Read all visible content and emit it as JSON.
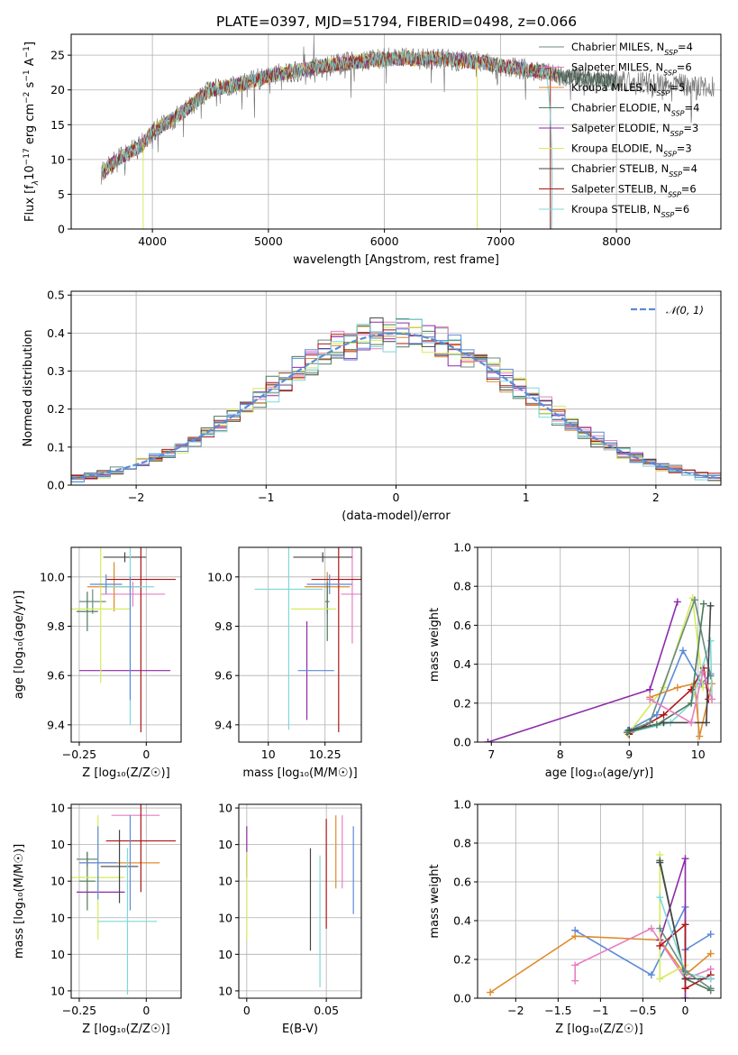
{
  "title": "PLATE=0397, MJD=51794, FIBERID=0498, z=0.066",
  "colors": {
    "Chabrier MILES": "#6a8a82",
    "Salpeter MILES": "#e77fc1",
    "Kroupa MILES": "#e08a2a",
    "Chabrier ELODIE": "#4d7a5a",
    "Salpeter ELODIE": "#8e2aa8",
    "Kroupa ELODIE": "#d6eb5a",
    "Chabrier STELIB": "#444444",
    "Salpeter STELIB": "#b01515",
    "Kroupa STELIB": "#7fd8d8",
    "normal": "#5b8bd8",
    "models_blue": "#5b8bd8"
  },
  "chart_data": [
    {
      "type": "line",
      "name": "spectrum",
      "xlabel": "wavelength [Angstrom, rest frame]",
      "ylabel_parts": [
        "Flux [f",
        "λ",
        "10",
        "−17",
        " erg cm",
        "−2",
        " s",
        "−1",
        " A",
        "−1",
        "]"
      ],
      "xlim": [
        3300,
        8900
      ],
      "ylim": [
        0,
        28
      ],
      "xticks": [
        4000,
        5000,
        6000,
        7000,
        8000
      ],
      "yticks": [
        0,
        5,
        10,
        15,
        20,
        25
      ],
      "continuum": [
        [
          3560,
          8
        ],
        [
          3700,
          10
        ],
        [
          3900,
          12
        ],
        [
          4000,
          14
        ],
        [
          4200,
          16
        ],
        [
          4500,
          20
        ],
        [
          4800,
          21
        ],
        [
          5000,
          22
        ],
        [
          5500,
          23.5
        ],
        [
          6000,
          24.5
        ],
        [
          6500,
          24.5
        ],
        [
          6800,
          24
        ],
        [
          7000,
          23.5
        ],
        [
          7200,
          23
        ],
        [
          7400,
          22.5
        ],
        [
          7500,
          22
        ],
        [
          7800,
          21.5
        ],
        [
          8300,
          21
        ],
        [
          8800,
          20.5
        ]
      ],
      "legend": [
        {
          "label": "Chabrier MILES",
          "nssp": "4"
        },
        {
          "label": "Salpeter MILES",
          "nssp": "6"
        },
        {
          "label": "Kroupa MILES",
          "nssp": "5"
        },
        {
          "label": "Chabrier ELODIE",
          "nssp": "4"
        },
        {
          "label": "Salpeter ELODIE",
          "nssp": "3"
        },
        {
          "label": "Kroupa ELODIE",
          "nssp": "3"
        },
        {
          "label": "Chabrier STELIB",
          "nssp": "4"
        },
        {
          "label": "Salpeter STELIB",
          "nssp": "6"
        },
        {
          "label": "Kroupa STELIB",
          "nssp": "6"
        }
      ],
      "nssp_prefix": "N",
      "nssp_sub": "SSP",
      "legend_position": "right"
    },
    {
      "type": "histogram",
      "name": "residuals",
      "xlabel": "(data-model)/error",
      "ylabel": "Normed distribution",
      "xlim": [
        -2.5,
        2.5
      ],
      "ylim": [
        0,
        0.51
      ],
      "xticks": [
        -2,
        -1,
        0,
        1,
        2
      ],
      "yticks": [
        0.0,
        0.1,
        0.2,
        0.3,
        0.4,
        0.5
      ],
      "bin_width": 0.1,
      "bin_start": -2.5,
      "legend": [
        "𝒩(0, 1)"
      ],
      "legend_position": "top-right"
    },
    {
      "type": "scatter",
      "name": "age-vs-Z",
      "xlabel": "Z [log₁₀(Z/Z☉)]",
      "ylabel": "age  [log₁₀(age/yr)]",
      "xlim": [
        -0.28,
        0.13
      ],
      "ylim": [
        9.33,
        10.12
      ],
      "xticks": [
        -0.25,
        0.0
      ],
      "yticks": [
        9.4,
        9.6,
        9.8,
        10.0
      ],
      "points": [
        {
          "series": "Chabrier MILES",
          "x": -0.2,
          "y": 9.9,
          "xerr": 0.05,
          "yerr": 0.05
        },
        {
          "series": "Salpeter MILES",
          "x": -0.05,
          "y": 9.93,
          "xerr": 0.12,
          "yerr": 0.05
        },
        {
          "series": "Kroupa MILES",
          "x": -0.12,
          "y": 9.96,
          "xerr": 0.1,
          "yerr": 0.1
        },
        {
          "series": "Chabrier ELODIE",
          "x": -0.22,
          "y": 9.86,
          "xerr": 0.04,
          "yerr": 0.08
        },
        {
          "series": "Salpeter ELODIE",
          "x": -0.08,
          "y": 9.62,
          "xerr": 0.17,
          "yerr": 0.0
        },
        {
          "series": "Kroupa ELODIE",
          "x": -0.17,
          "y": 9.87,
          "xerr": 0.11,
          "yerr": 0.3
        },
        {
          "series": "Chabrier STELIB",
          "x": -0.08,
          "y": 10.08,
          "xerr": 0.08,
          "yerr": 0.02
        },
        {
          "series": "Salpeter STELIB",
          "x": -0.02,
          "y": 9.99,
          "xerr": 0.13,
          "yerr": 0.62
        },
        {
          "series": "Kroupa STELIB",
          "x": -0.06,
          "y": 9.96,
          "xerr": 0.09,
          "yerr": 0.56
        },
        {
          "series": "Models",
          "x": -0.15,
          "y": 9.97,
          "xerr": 0.06,
          "yerr": 0.04
        },
        {
          "series": "Models",
          "x": -0.06,
          "y": 9.75,
          "xerr": 0.0,
          "yerr": 0.25
        }
      ]
    },
    {
      "type": "scatter",
      "name": "age-vs-mass",
      "xlabel": "mass [log₁₀(M/M☉)]",
      "ylabel": "",
      "xlim": [
        9.87,
        10.41
      ],
      "ylim": [
        9.33,
        10.12
      ],
      "xticks": [
        10.0,
        10.25
      ],
      "yticks": [
        9.4,
        9.6,
        9.8,
        10.0
      ],
      "points": [
        {
          "series": "Chabrier MILES",
          "x": 10.26,
          "y": 9.9,
          "xerr": 0.01,
          "yerr": 0.05
        },
        {
          "series": "Salpeter MILES",
          "x": 10.37,
          "y": 9.93,
          "xerr": 0.05,
          "yerr": 0.2
        },
        {
          "series": "Kroupa MILES",
          "x": 10.26,
          "y": 9.96,
          "xerr": 0.1,
          "yerr": 0.06
        },
        {
          "series": "Chabrier ELODIE",
          "x": 10.26,
          "y": 9.86,
          "xerr": 0.0,
          "yerr": 0.12
        },
        {
          "series": "Salpeter ELODIE",
          "x": 10.17,
          "y": 9.62,
          "xerr": 0.0,
          "yerr": 0.2
        },
        {
          "series": "Kroupa ELODIE",
          "x": 10.2,
          "y": 9.87,
          "xerr": 0.1,
          "yerr": 0.0
        },
        {
          "series": "Chabrier STELIB",
          "x": 10.24,
          "y": 10.08,
          "xerr": 0.13,
          "yerr": 0.02
        },
        {
          "series": "Salpeter STELIB",
          "x": 10.31,
          "y": 9.99,
          "xerr": 0.12,
          "yerr": 0.62
        },
        {
          "series": "Kroupa STELIB",
          "x": 10.09,
          "y": 9.95,
          "xerr": 0.15,
          "yerr": 0.57
        },
        {
          "series": "Models",
          "x": 10.27,
          "y": 9.97,
          "xerr": 0.1,
          "yerr": 0.04
        },
        {
          "series": "Models",
          "x": 10.21,
          "y": 9.62,
          "xerr": 0.08,
          "yerr": 0.0
        }
      ]
    },
    {
      "type": "line",
      "name": "massweight-vs-age",
      "xlabel": "age  [log₁₀(age/yr)]",
      "ylabel": "mass weight",
      "xlim": [
        6.8,
        10.33
      ],
      "ylim": [
        0,
        1
      ],
      "xticks": [
        7,
        8,
        9,
        10
      ],
      "yticks": [
        0.0,
        0.2,
        0.4,
        0.6,
        0.8,
        1.0
      ],
      "series": [
        {
          "name": "Salpeter ELODIE",
          "x": [
            6.95,
            9.3,
            9.7
          ],
          "y": [
            0.0,
            0.27,
            0.72
          ]
        },
        {
          "name": "Models",
          "x": [
            8.98,
            9.4,
            9.78,
            10.05,
            10.18
          ],
          "y": [
            0.06,
            0.14,
            0.47,
            0.3,
            0.35
          ]
        },
        {
          "name": "Kroupa ELODIE",
          "x": [
            8.98,
            9.5,
            9.92,
            10.07
          ],
          "y": [
            0.04,
            0.28,
            0.74,
            0.28
          ]
        },
        {
          "name": "Kroupa MILES",
          "x": [
            9.3,
            9.7,
            9.95,
            10.02,
            10.2
          ],
          "y": [
            0.23,
            0.28,
            0.3,
            0.03,
            0.3
          ]
        },
        {
          "name": "Salpeter STELIB",
          "x": [
            9.0,
            9.5,
            9.9,
            10.08,
            10.15
          ],
          "y": [
            0.04,
            0.14,
            0.27,
            0.38,
            0.22
          ]
        },
        {
          "name": "Kroupa STELIB",
          "x": [
            9.0,
            9.6,
            9.9,
            10.18,
            10.2
          ],
          "y": [
            0.05,
            0.1,
            0.2,
            0.52,
            0.22
          ]
        },
        {
          "name": "Chabrier MILES",
          "x": [
            9.0,
            9.3,
            9.95,
            10.18
          ],
          "y": [
            0.06,
            0.1,
            0.73,
            0.34
          ]
        },
        {
          "name": "Chabrier STELIB",
          "x": [
            9.0,
            9.5,
            10.12,
            10.18
          ],
          "y": [
            0.06,
            0.1,
            0.1,
            0.7
          ]
        },
        {
          "name": "Chabrier ELODIE",
          "x": [
            8.97,
            9.4,
            9.9,
            10.08
          ],
          "y": [
            0.05,
            0.09,
            0.2,
            0.71
          ]
        },
        {
          "name": "Salpeter MILES",
          "x": [
            9.3,
            9.9,
            10.07,
            10.2
          ],
          "y": [
            0.22,
            0.1,
            0.36,
            0.22
          ]
        }
      ]
    },
    {
      "type": "scatter",
      "name": "mass-vs-Z",
      "xlabel": "Z [log₁₀(Z/Z☉)]",
      "ylabel": "mass [log₁₀(M/M☉)]",
      "xlim": [
        -0.28,
        0.13
      ],
      "ylim": [
        9.88,
        10.41
      ],
      "xticks": [
        -0.25,
        0.0
      ],
      "yticks": [
        9.9,
        10.0,
        10.1,
        10.2,
        10.3,
        10.4
      ],
      "points": [
        {
          "series": "Chabrier MILES",
          "x": -0.22,
          "y": 10.26,
          "xerr": 0.04,
          "yerr": 0.02
        },
        {
          "series": "Salpeter MILES",
          "x": -0.04,
          "y": 10.38,
          "xerr": 0.09,
          "yerr": 0.0
        },
        {
          "series": "Kroupa MILES",
          "x": -0.1,
          "y": 10.25,
          "xerr": 0.15,
          "yerr": 0.0
        },
        {
          "series": "Chabrier ELODIE",
          "x": -0.22,
          "y": 10.2,
          "xerr": 0.03,
          "yerr": 0.08
        },
        {
          "series": "Salpeter ELODIE",
          "x": -0.17,
          "y": 10.17,
          "xerr": 0.09,
          "yerr": 0.0
        },
        {
          "series": "Kroupa ELODIE",
          "x": -0.18,
          "y": 10.21,
          "xerr": 0.1,
          "yerr": 0.17
        },
        {
          "series": "Chabrier STELIB",
          "x": -0.1,
          "y": 10.24,
          "xerr": 0.07,
          "yerr": 0.1
        },
        {
          "series": "Salpeter STELIB",
          "x": -0.02,
          "y": 10.31,
          "xerr": 0.13,
          "yerr": 0.14
        },
        {
          "series": "Kroupa STELIB",
          "x": -0.07,
          "y": 10.09,
          "xerr": 0.11,
          "yerr": 0.2
        },
        {
          "series": "Models",
          "x": -0.18,
          "y": 10.25,
          "xerr": 0.07,
          "yerr": 0.1
        },
        {
          "series": "Models",
          "x": -0.06,
          "y": 10.25,
          "xerr": 0.0,
          "yerr": 0.13
        }
      ]
    },
    {
      "type": "errorbar",
      "name": "mass-vs-EBV",
      "xlabel": "E(B-V)",
      "ylabel": "",
      "xlim": [
        -0.005,
        0.072
      ],
      "ylim": [
        9.88,
        10.41
      ],
      "xticks": [
        0.0,
        0.05
      ],
      "yticks": [
        9.9,
        10.0,
        10.1,
        10.2,
        10.3,
        10.4
      ],
      "points": [
        {
          "series": "Salpeter ELODIE",
          "x": 0.0,
          "y": 10.28,
          "yerr": 0.07
        },
        {
          "series": "Kroupa ELODIE",
          "x": 0.0,
          "y": 10.16,
          "yerr": 0.12
        },
        {
          "series": "Chabrier STELIB",
          "x": 0.04,
          "y": 10.15,
          "yerr": 0.14
        },
        {
          "series": "Kroupa STELIB",
          "x": 0.046,
          "y": 10.09,
          "yerr": 0.18
        },
        {
          "series": "Salpeter STELIB",
          "x": 0.05,
          "y": 10.22,
          "yerr": 0.15
        },
        {
          "series": "Kroupa MILES",
          "x": 0.056,
          "y": 10.28,
          "yerr": 0.1
        },
        {
          "series": "Salpeter MILES",
          "x": 0.06,
          "y": 10.28,
          "yerr": 0.1
        },
        {
          "series": "Models",
          "x": 0.067,
          "y": 10.23,
          "yerr": 0.12
        }
      ]
    },
    {
      "type": "line",
      "name": "massweight-vs-Z",
      "xlabel": "Z [log₁₀(Z/Z☉)]",
      "ylabel": "mass weight",
      "xlim": [
        -2.45,
        0.42
      ],
      "ylim": [
        0,
        1
      ],
      "xticks": [
        -2.0,
        -1.5,
        -1.0,
        -0.5,
        0.0
      ],
      "yticks": [
        0.0,
        0.2,
        0.4,
        0.6,
        0.8,
        1.0
      ],
      "series": [
        {
          "name": "Models",
          "x": [
            -1.3,
            -0.4,
            0.0,
            0.0,
            0.3
          ],
          "y": [
            0.35,
            0.12,
            0.47,
            0.25,
            0.33
          ]
        },
        {
          "name": "Kroupa MILES",
          "x": [
            -2.3,
            -1.3,
            -0.3,
            0.0,
            0.3
          ],
          "y": [
            0.03,
            0.32,
            0.3,
            0.12,
            0.23
          ]
        },
        {
          "name": "Salpeter MILES",
          "x": [
            -1.3,
            -1.3,
            -0.4,
            0.0,
            0.3
          ],
          "y": [
            0.09,
            0.17,
            0.36,
            0.1,
            0.15
          ]
        },
        {
          "name": "Salpeter ELODIE",
          "x": [
            -0.3,
            0.0,
            0.0
          ],
          "y": [
            0.3,
            0.72,
            0.0
          ]
        },
        {
          "name": "Kroupa ELODIE",
          "x": [
            -0.3,
            -0.3,
            0.0
          ],
          "y": [
            0.74,
            0.1,
            0.17
          ]
        },
        {
          "name": "Chabrier ELODIE",
          "x": [
            -0.3,
            0.0,
            0.3
          ],
          "y": [
            0.71,
            0.1,
            0.04
          ]
        },
        {
          "name": "Chabrier STELIB",
          "x": [
            -0.3,
            0.0,
            0.3
          ],
          "y": [
            0.7,
            0.1,
            0.1
          ]
        },
        {
          "name": "Salpeter STELIB",
          "x": [
            -0.3,
            0.0,
            0.0,
            0.3
          ],
          "y": [
            0.27,
            0.38,
            0.05,
            0.12
          ]
        },
        {
          "name": "Kroupa STELIB",
          "x": [
            -0.3,
            0.0,
            0.3
          ],
          "y": [
            0.52,
            0.13,
            0.1
          ]
        },
        {
          "name": "Chabrier MILES",
          "x": [
            -0.3,
            0.0,
            0.3
          ],
          "y": [
            0.36,
            0.14,
            0.05
          ]
        }
      ]
    }
  ]
}
